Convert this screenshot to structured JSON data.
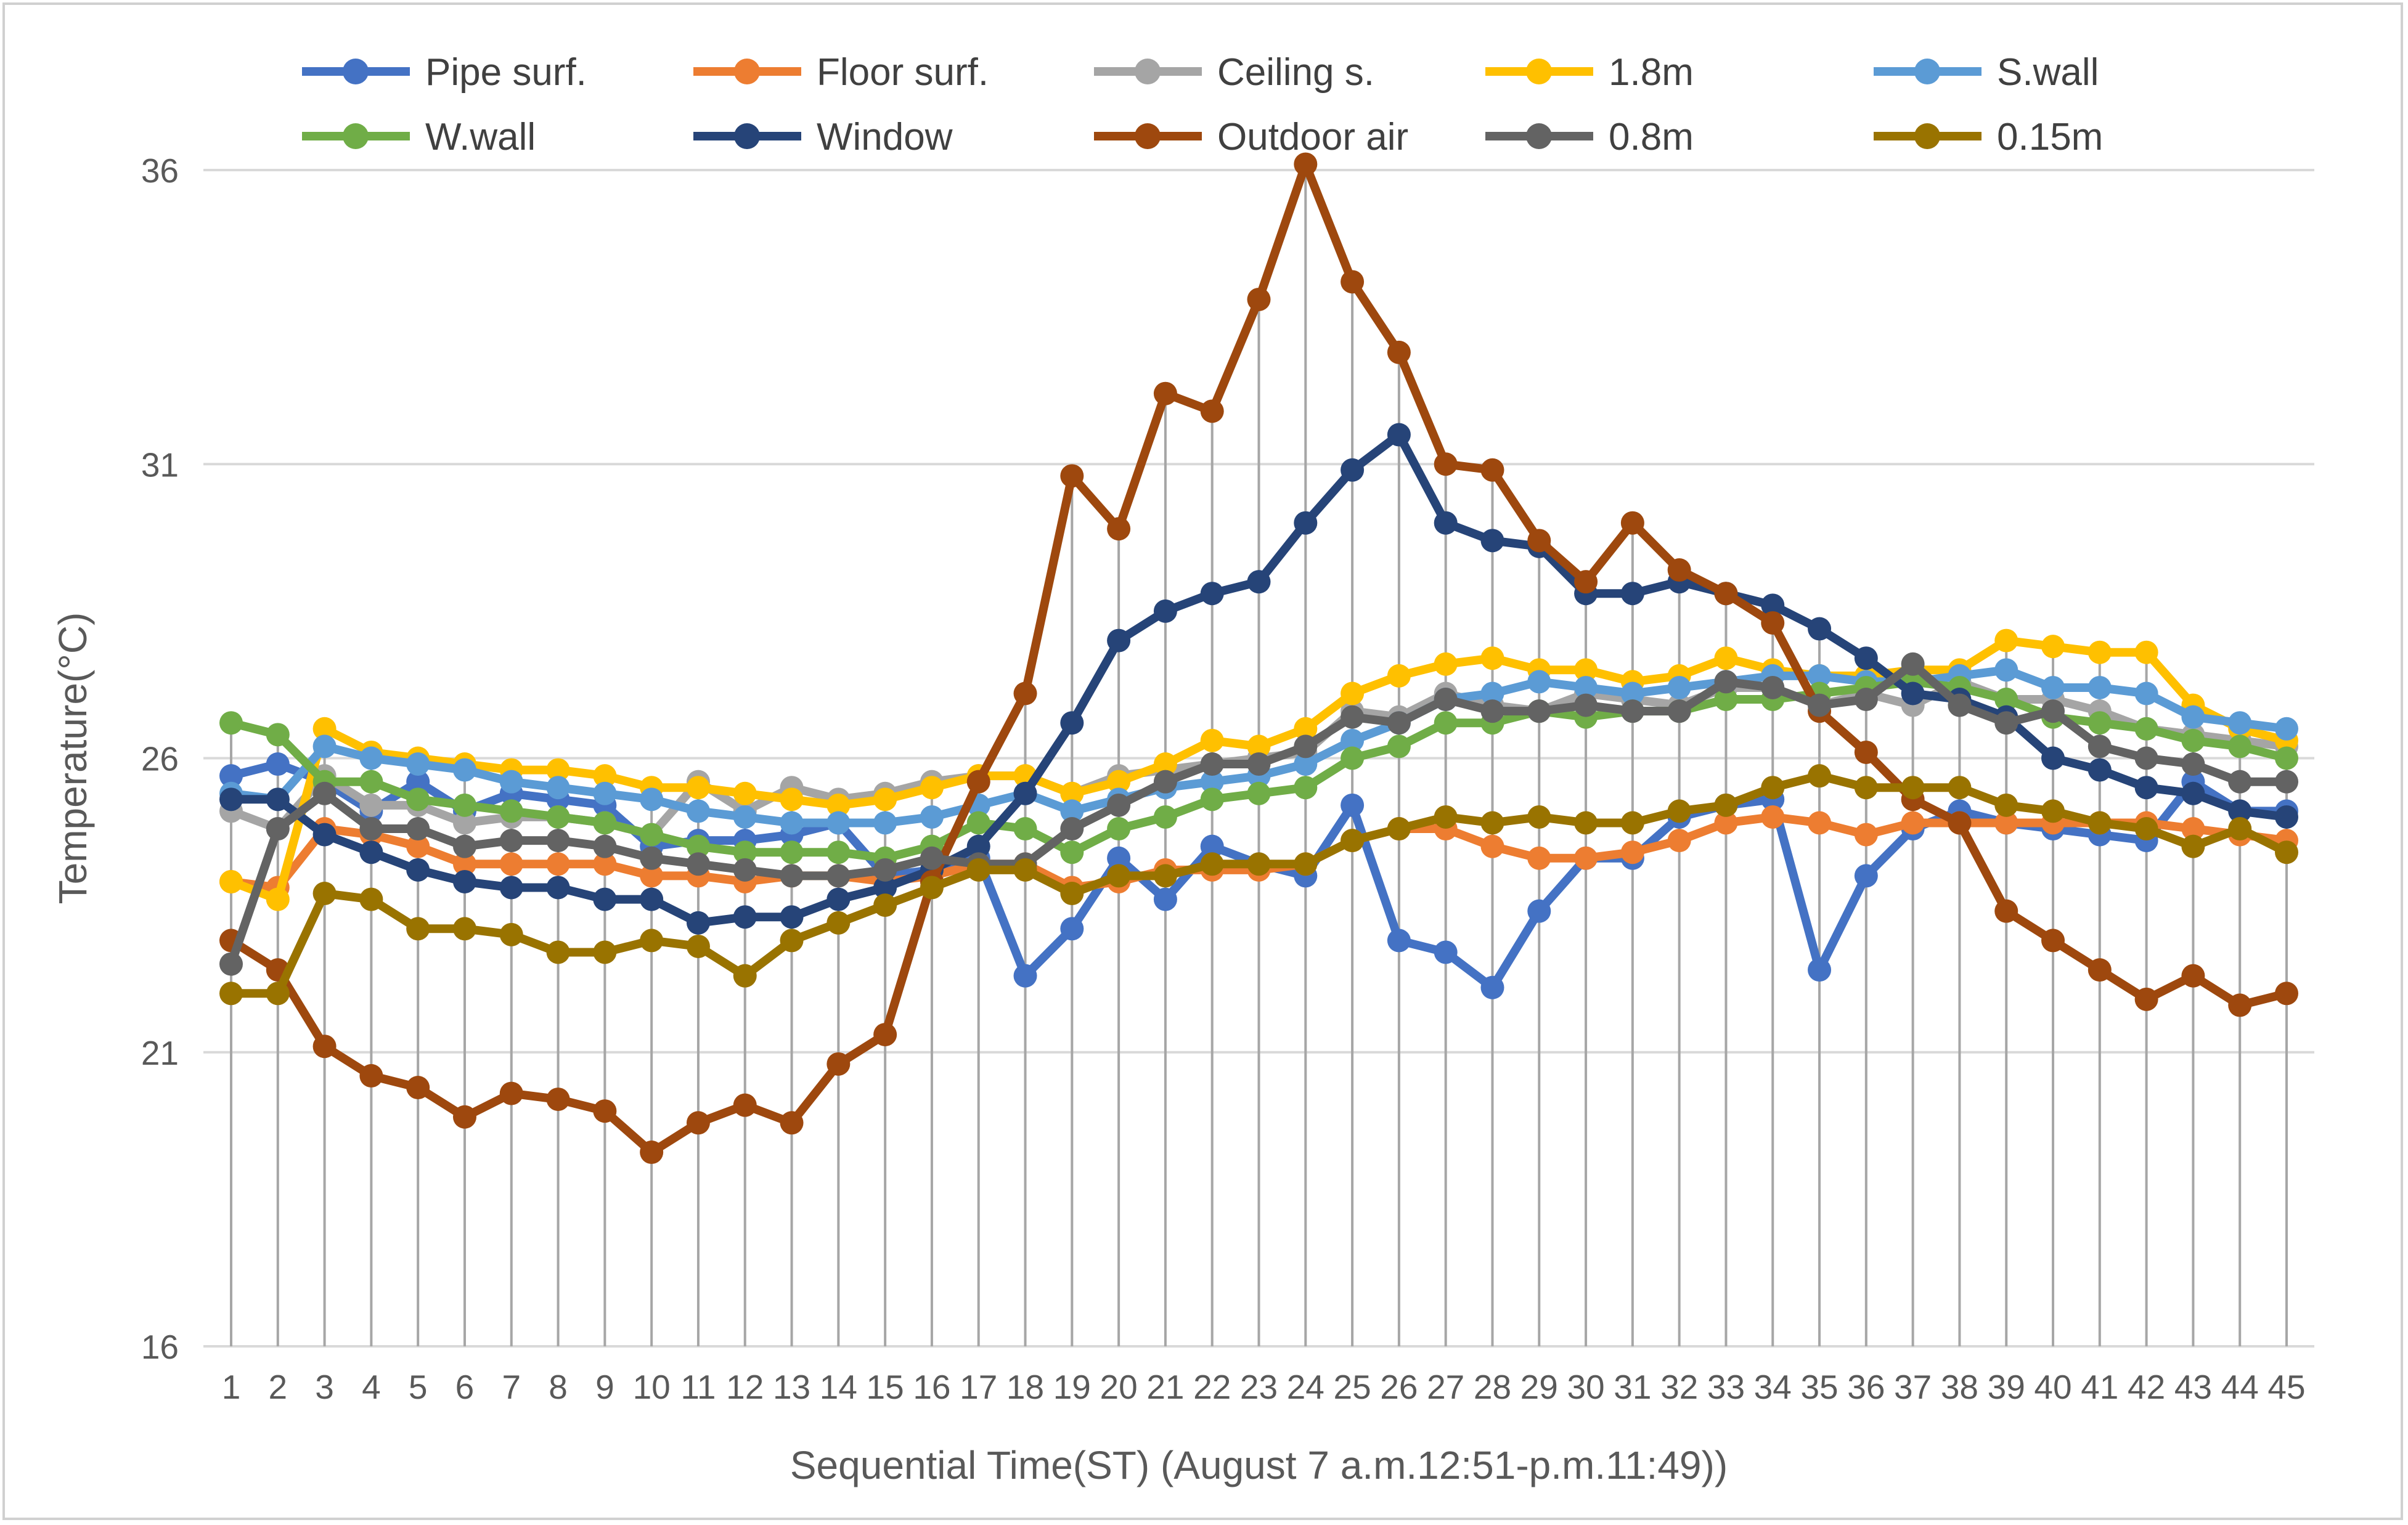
{
  "chart_data": {
    "type": "line",
    "title": "",
    "xlabel": "Sequential Time(ST) (August 7  a.m.12:51-p.m.11:49))",
    "ylabel": "Temperature(°C)",
    "ylim": [
      16,
      36
    ],
    "yticks": [
      16,
      21,
      26,
      31,
      36
    ],
    "grid": "horizontal",
    "drop_lines": true,
    "legend_position": "top",
    "x": [
      1,
      2,
      3,
      4,
      5,
      6,
      7,
      8,
      9,
      10,
      11,
      12,
      13,
      14,
      15,
      16,
      17,
      18,
      19,
      20,
      21,
      22,
      23,
      24,
      25,
      26,
      27,
      28,
      29,
      30,
      31,
      32,
      33,
      34,
      35,
      36,
      37,
      38,
      39,
      40,
      41,
      42,
      43,
      44,
      45
    ],
    "series": [
      {
        "name": "Pipe surf.",
        "color": "#4472C4",
        "values": [
          25.7,
          25.9,
          25.6,
          25.1,
          25.6,
          25.1,
          25.4,
          25.3,
          25.2,
          24.5,
          24.6,
          24.6,
          24.7,
          24.9,
          24.0,
          24.1,
          24.3,
          22.3,
          23.1,
          24.3,
          23.6,
          24.5,
          24.2,
          24.0,
          25.2,
          22.9,
          22.7,
          22.1,
          23.4,
          24.3,
          24.3,
          25.0,
          25.2,
          25.3,
          22.4,
          24.0,
          24.8,
          25.1,
          24.9,
          24.8,
          24.7,
          24.6,
          25.6,
          25.1,
          25.1
        ]
      },
      {
        "name": "Floor surf.",
        "color": "#ED7D31",
        "values": [
          23.9,
          23.8,
          24.8,
          24.7,
          24.5,
          24.2,
          24.2,
          24.2,
          24.2,
          24.0,
          24.0,
          23.9,
          24.0,
          24.0,
          23.9,
          24.0,
          24.2,
          24.2,
          23.8,
          23.9,
          24.1,
          24.1,
          24.1,
          24.2,
          24.6,
          24.8,
          24.8,
          24.5,
          24.3,
          24.3,
          24.4,
          24.6,
          24.9,
          25.0,
          24.9,
          24.7,
          24.9,
          24.9,
          24.9,
          24.9,
          24.9,
          24.9,
          24.8,
          24.7,
          24.6
        ]
      },
      {
        "name": "Ceiling s.",
        "color": "#A5A5A5",
        "values": [
          25.1,
          24.8,
          25.7,
          25.2,
          25.2,
          24.9,
          25.0,
          25.0,
          24.9,
          24.7,
          25.6,
          25.1,
          25.5,
          25.3,
          25.4,
          25.6,
          25.7,
          25.7,
          25.4,
          25.7,
          25.8,
          25.9,
          26.0,
          26.1,
          26.8,
          26.7,
          27.1,
          26.9,
          26.8,
          27.1,
          27.0,
          26.9,
          27.2,
          27.2,
          26.9,
          27.1,
          26.9,
          27.3,
          27.0,
          27.0,
          26.8,
          26.5,
          26.4,
          26.3,
          26.2
        ]
      },
      {
        "name": "1.8m",
        "color": "#FFC000",
        "values": [
          23.9,
          23.6,
          26.5,
          26.1,
          26.0,
          25.9,
          25.8,
          25.8,
          25.7,
          25.5,
          25.5,
          25.4,
          25.3,
          25.2,
          25.3,
          25.5,
          25.7,
          25.7,
          25.4,
          25.6,
          25.9,
          26.3,
          26.2,
          26.5,
          27.1,
          27.4,
          27.6,
          27.7,
          27.5,
          27.5,
          27.3,
          27.4,
          27.7,
          27.5,
          27.4,
          27.4,
          27.5,
          27.5,
          28.0,
          27.9,
          27.8,
          27.8,
          26.9,
          26.5,
          26.3
        ]
      },
      {
        "name": "S.wall",
        "color": "#5B9BD5",
        "values": [
          25.4,
          25.3,
          26.2,
          26.0,
          25.9,
          25.8,
          25.6,
          25.5,
          25.4,
          25.3,
          25.1,
          25.0,
          24.9,
          24.9,
          24.9,
          25.0,
          25.2,
          25.4,
          25.1,
          25.3,
          25.5,
          25.6,
          25.7,
          25.9,
          26.3,
          26.6,
          27.0,
          27.1,
          27.3,
          27.2,
          27.1,
          27.2,
          27.3,
          27.4,
          27.4,
          27.3,
          27.3,
          27.4,
          27.5,
          27.2,
          27.2,
          27.1,
          26.7,
          26.6,
          26.5
        ]
      },
      {
        "name": "W.wall",
        "color": "#70AD47",
        "values": [
          26.6,
          26.4,
          25.6,
          25.6,
          25.3,
          25.2,
          25.1,
          25.0,
          24.9,
          24.7,
          24.5,
          24.4,
          24.4,
          24.4,
          24.3,
          24.5,
          24.9,
          24.8,
          24.4,
          24.8,
          25.0,
          25.3,
          25.4,
          25.5,
          26.0,
          26.2,
          26.6,
          26.6,
          26.8,
          26.7,
          26.8,
          26.8,
          27.0,
          27.0,
          27.1,
          27.2,
          27.3,
          27.2,
          27.0,
          26.7,
          26.6,
          26.5,
          26.3,
          26.2,
          26.0
        ]
      },
      {
        "name": "Window",
        "color": "#264478",
        "values": [
          25.3,
          25.3,
          24.7,
          24.4,
          24.1,
          23.9,
          23.8,
          23.8,
          23.6,
          23.6,
          23.2,
          23.3,
          23.3,
          23.6,
          23.8,
          24.1,
          24.5,
          25.4,
          26.6,
          28.0,
          28.5,
          28.8,
          29.0,
          30.0,
          30.9,
          31.5,
          30.0,
          29.7,
          29.6,
          28.8,
          28.8,
          29.0,
          28.8,
          28.6,
          28.2,
          27.7,
          27.1,
          27.0,
          26.7,
          26.0,
          25.8,
          25.5,
          25.4,
          25.1,
          25.0
        ]
      },
      {
        "name": "Outdoor air",
        "color": "#9E480E",
        "values": [
          22.9,
          22.4,
          21.1,
          20.6,
          20.4,
          19.9,
          20.3,
          20.2,
          20.0,
          19.3,
          19.8,
          20.1,
          19.8,
          20.8,
          21.3,
          23.9,
          25.6,
          27.1,
          30.8,
          29.9,
          32.2,
          31.9,
          33.8,
          36.1,
          34.1,
          32.9,
          31.0,
          30.9,
          29.7,
          29.0,
          30.0,
          29.2,
          28.8,
          28.3,
          26.8,
          26.1,
          25.3,
          24.9,
          23.4,
          22.9,
          22.4,
          21.9,
          22.3,
          21.8,
          22.0
        ]
      },
      {
        "name": "0.8m",
        "color": "#636363",
        "values": [
          22.5,
          24.8,
          25.4,
          24.8,
          24.8,
          24.5,
          24.6,
          24.6,
          24.5,
          24.3,
          24.2,
          24.1,
          24.0,
          24.0,
          24.1,
          24.3,
          24.2,
          24.2,
          24.8,
          25.2,
          25.6,
          25.9,
          25.9,
          26.2,
          26.7,
          26.6,
          27.0,
          26.8,
          26.8,
          26.9,
          26.8,
          26.8,
          27.3,
          27.2,
          26.9,
          27.0,
          27.6,
          26.9,
          26.6,
          26.8,
          26.2,
          26.0,
          25.9,
          25.6,
          25.6
        ]
      },
      {
        "name": "0.15m",
        "color": "#997300",
        "values": [
          22.0,
          22.0,
          23.7,
          23.6,
          23.1,
          23.1,
          23.0,
          22.7,
          22.7,
          22.9,
          22.8,
          22.3,
          22.9,
          23.2,
          23.5,
          23.8,
          24.1,
          24.1,
          23.7,
          24.0,
          24.0,
          24.2,
          24.2,
          24.2,
          24.6,
          24.8,
          25.0,
          24.9,
          25.0,
          24.9,
          24.9,
          25.1,
          25.2,
          25.5,
          25.7,
          25.5,
          25.5,
          25.5,
          25.2,
          25.1,
          24.9,
          24.8,
          24.5,
          24.8,
          24.4
        ]
      }
    ]
  }
}
